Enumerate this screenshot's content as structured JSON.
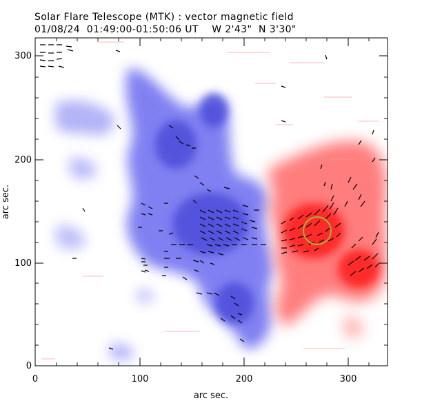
{
  "header": {
    "title": "Solar Flare Telescope (MTK) : vector magnetic field",
    "subtitle": "01/08/24  01:49:00-01:50:06 UT    W 2'43\"  N 3'30\""
  },
  "axes": {
    "xlabel": "arc sec.",
    "ylabel": "arc sec.",
    "xlim": [
      0,
      338
    ],
    "ylim": [
      0,
      316
    ],
    "xticks": [
      "0",
      "100",
      "200",
      "300"
    ],
    "yticks": [
      "0",
      "100",
      "200",
      "300"
    ]
  },
  "colors": {
    "positive_polarity": "#ff3030",
    "negative_polarity": "#5a5ae8",
    "vector": "#000000",
    "marker": "#90b030"
  },
  "marker": {
    "x": 270,
    "y": 128,
    "label_x": "arc sec.",
    "type": "circle"
  }
}
